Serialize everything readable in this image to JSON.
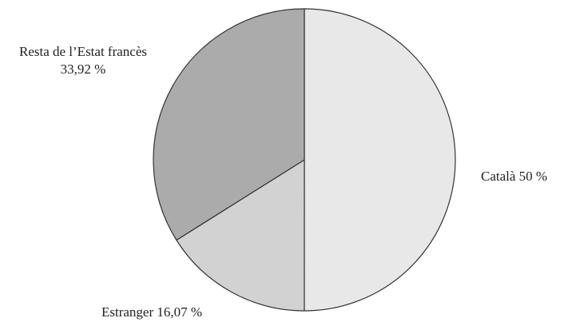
{
  "chart_data": {
    "type": "pie",
    "title": "",
    "slices": [
      {
        "label": "Català",
        "value": 50.0,
        "display": "Català 50 %",
        "color": "#e8e8e8"
      },
      {
        "label": "Estranger",
        "value": 16.07,
        "display": "Estranger 16,07 %",
        "color": "#d2d2d2"
      },
      {
        "label": "Resta de l’Estat francès",
        "value": 33.92,
        "display_lines": [
          "Resta de l’Estat francès",
          "33,92 %"
        ],
        "color": "#ababab"
      }
    ],
    "start_angle": "top (12 o'clock)",
    "direction": "clockwise",
    "legend": "none",
    "slice_border": "#333333"
  }
}
